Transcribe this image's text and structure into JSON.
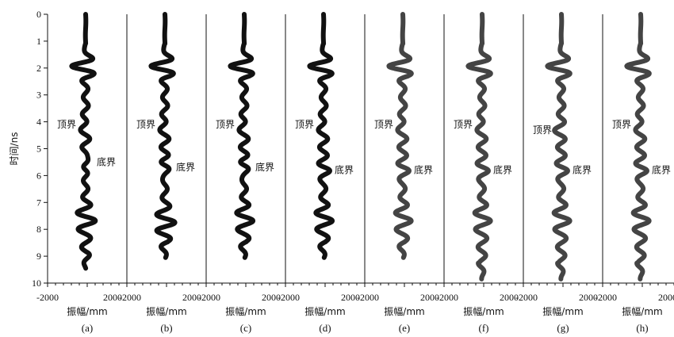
{
  "chart_data": {
    "type": "line",
    "ylabel": "时间/ns",
    "xlabel": "振幅/mm",
    "ylim": [
      0,
      10
    ],
    "yticks": [
      "0",
      "1",
      "2",
      "3",
      "4",
      "5",
      "6",
      "7",
      "8",
      "9",
      "10"
    ],
    "xlim": [
      -2000,
      2000
    ],
    "xticks": [
      "-2000",
      "2000"
    ],
    "annotation_top": "顶界",
    "annotation_bottom": "底界",
    "panels": [
      {
        "label": "(a)",
        "color": "#111111",
        "top_t": 4.1,
        "top_side": "left",
        "bottom_t": 5.5,
        "bottom_side": "right",
        "end_t": 9.45,
        "burst_t": 7.6,
        "burst_amp": 1.0
      },
      {
        "label": "(b)",
        "color": "#111111",
        "top_t": 4.1,
        "top_side": "left",
        "bottom_t": 5.7,
        "bottom_side": "right",
        "end_t": 9.05,
        "burst_t": 7.7,
        "burst_amp": 0.9
      },
      {
        "label": "(c)",
        "color": "#111111",
        "top_t": 4.1,
        "top_side": "left",
        "bottom_t": 5.7,
        "bottom_side": "right",
        "end_t": 9.05,
        "burst_t": 7.6,
        "burst_amp": 0.85
      },
      {
        "label": "(d)",
        "color": "#111111",
        "top_t": 4.1,
        "top_side": "left",
        "bottom_t": 5.8,
        "bottom_side": "right",
        "end_t": 9.05,
        "burst_t": 7.6,
        "burst_amp": 0.85
      },
      {
        "label": "(e)",
        "color": "#444444",
        "top_t": 4.1,
        "top_side": "left",
        "bottom_t": 5.8,
        "bottom_side": "right",
        "end_t": 9.05,
        "burst_t": 7.6,
        "burst_amp": 0.8
      },
      {
        "label": "(f)",
        "color": "#444444",
        "top_t": 4.1,
        "top_side": "left",
        "bottom_t": 5.8,
        "bottom_side": "right",
        "end_t": 9.85,
        "burst_t": 7.6,
        "burst_amp": 0.8
      },
      {
        "label": "(g)",
        "color": "#444444",
        "top_t": 4.3,
        "top_side": "left",
        "bottom_t": 5.8,
        "bottom_side": "right",
        "end_t": 9.85,
        "burst_t": 7.6,
        "burst_amp": 0.8
      },
      {
        "label": "(h)",
        "color": "#444444",
        "top_t": 4.1,
        "top_side": "left",
        "bottom_t": 5.8,
        "bottom_side": "right",
        "end_t": 9.85,
        "burst_t": 7.6,
        "burst_amp": 0.8
      }
    ]
  }
}
